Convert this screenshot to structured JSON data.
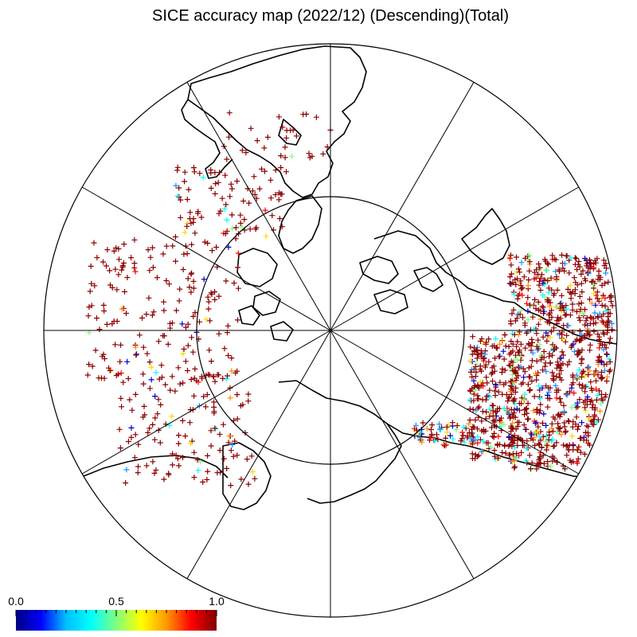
{
  "title": "SICE accuracy map (2022/12) (Descending)(Total)",
  "colorbar": {
    "ticks": [
      "0.0",
      "0.5",
      "1.0"
    ],
    "colors": [
      "#000080",
      "#0000ff",
      "#00bfff",
      "#00ffff",
      "#7fff7f",
      "#ffff00",
      "#ff9900",
      "#ff0000",
      "#800000"
    ]
  },
  "map": {
    "projection": "north polar stereographic",
    "meridian_line_count": 12,
    "inner_latitude_circle": true,
    "coastline_color": "#000000",
    "dominant_marker_color": "#8b0000",
    "marker_symbol": "+"
  }
}
